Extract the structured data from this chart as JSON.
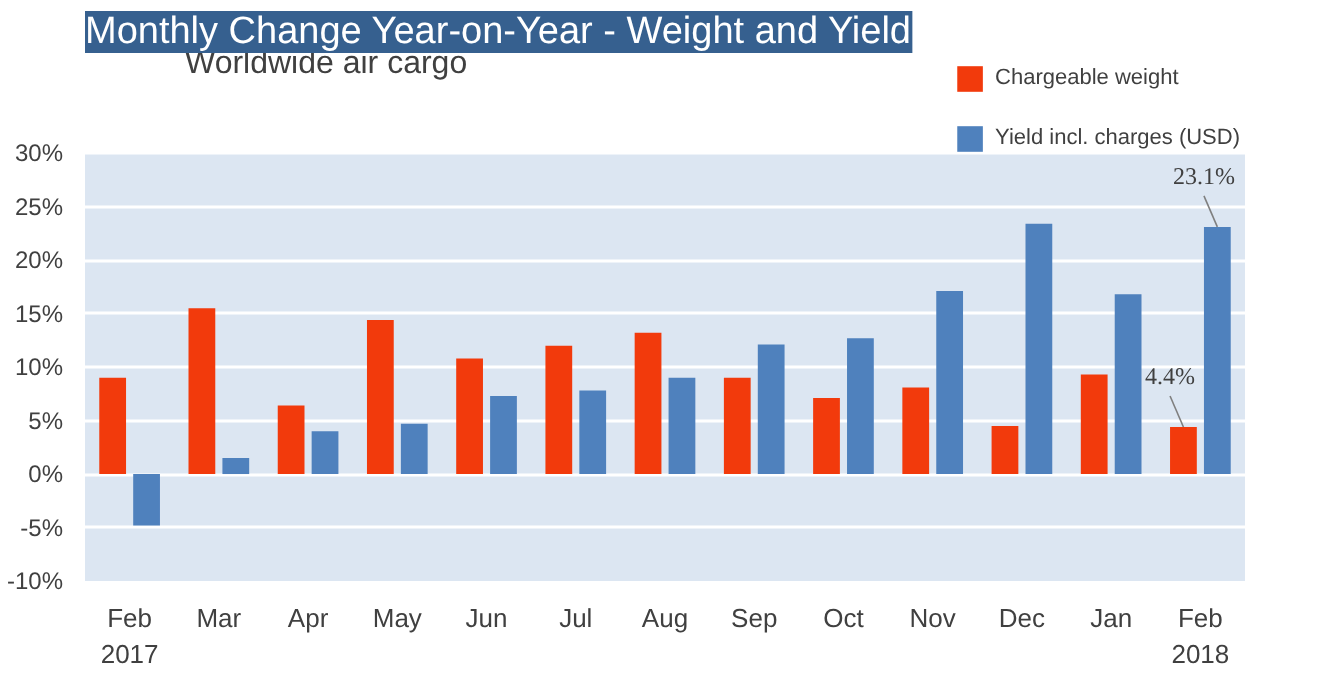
{
  "chart_data": {
    "type": "bar",
    "title": "Monthly Change Year-on-Year - Weight and Yield",
    "subtitle": "Worldwide air cargo",
    "categories": [
      "Feb\n2017",
      "Mar",
      "Apr",
      "May",
      "Jun",
      "Jul",
      "Aug",
      "Sep",
      "Oct",
      "Nov",
      "Dec",
      "Jan",
      "Feb\n2018"
    ],
    "series": [
      {
        "name": "Chargeable weight",
        "color": "#f23a0c",
        "values": [
          9.0,
          15.5,
          6.4,
          14.4,
          10.8,
          12.0,
          13.2,
          9.0,
          7.1,
          8.1,
          4.5,
          9.3,
          4.4
        ],
        "value_labels": [
          null,
          null,
          null,
          null,
          null,
          null,
          null,
          null,
          null,
          null,
          null,
          null,
          "4.4%"
        ]
      },
      {
        "name": "Yield incl. charges (USD)",
        "color": "#4f81bd",
        "values": [
          -4.8,
          1.5,
          4.0,
          4.7,
          7.3,
          7.8,
          9.0,
          12.1,
          12.7,
          17.1,
          23.4,
          16.8,
          23.1
        ],
        "value_labels": [
          null,
          null,
          null,
          null,
          null,
          null,
          null,
          null,
          null,
          null,
          null,
          null,
          "23.1%"
        ]
      }
    ],
    "ylim": [
      -10,
      30
    ],
    "yticks": [
      {
        "value": -10,
        "label": "-10%"
      },
      {
        "value": -5,
        "label": "-5%"
      },
      {
        "value": 0,
        "label": "0%"
      },
      {
        "value": 5,
        "label": "5%"
      },
      {
        "value": 10,
        "label": "10%"
      },
      {
        "value": 15,
        "label": "15%"
      },
      {
        "value": 20,
        "label": "20%"
      },
      {
        "value": 25,
        "label": "25%"
      },
      {
        "value": 30,
        "label": "30%"
      }
    ],
    "grid": "y",
    "legend": "top right"
  }
}
